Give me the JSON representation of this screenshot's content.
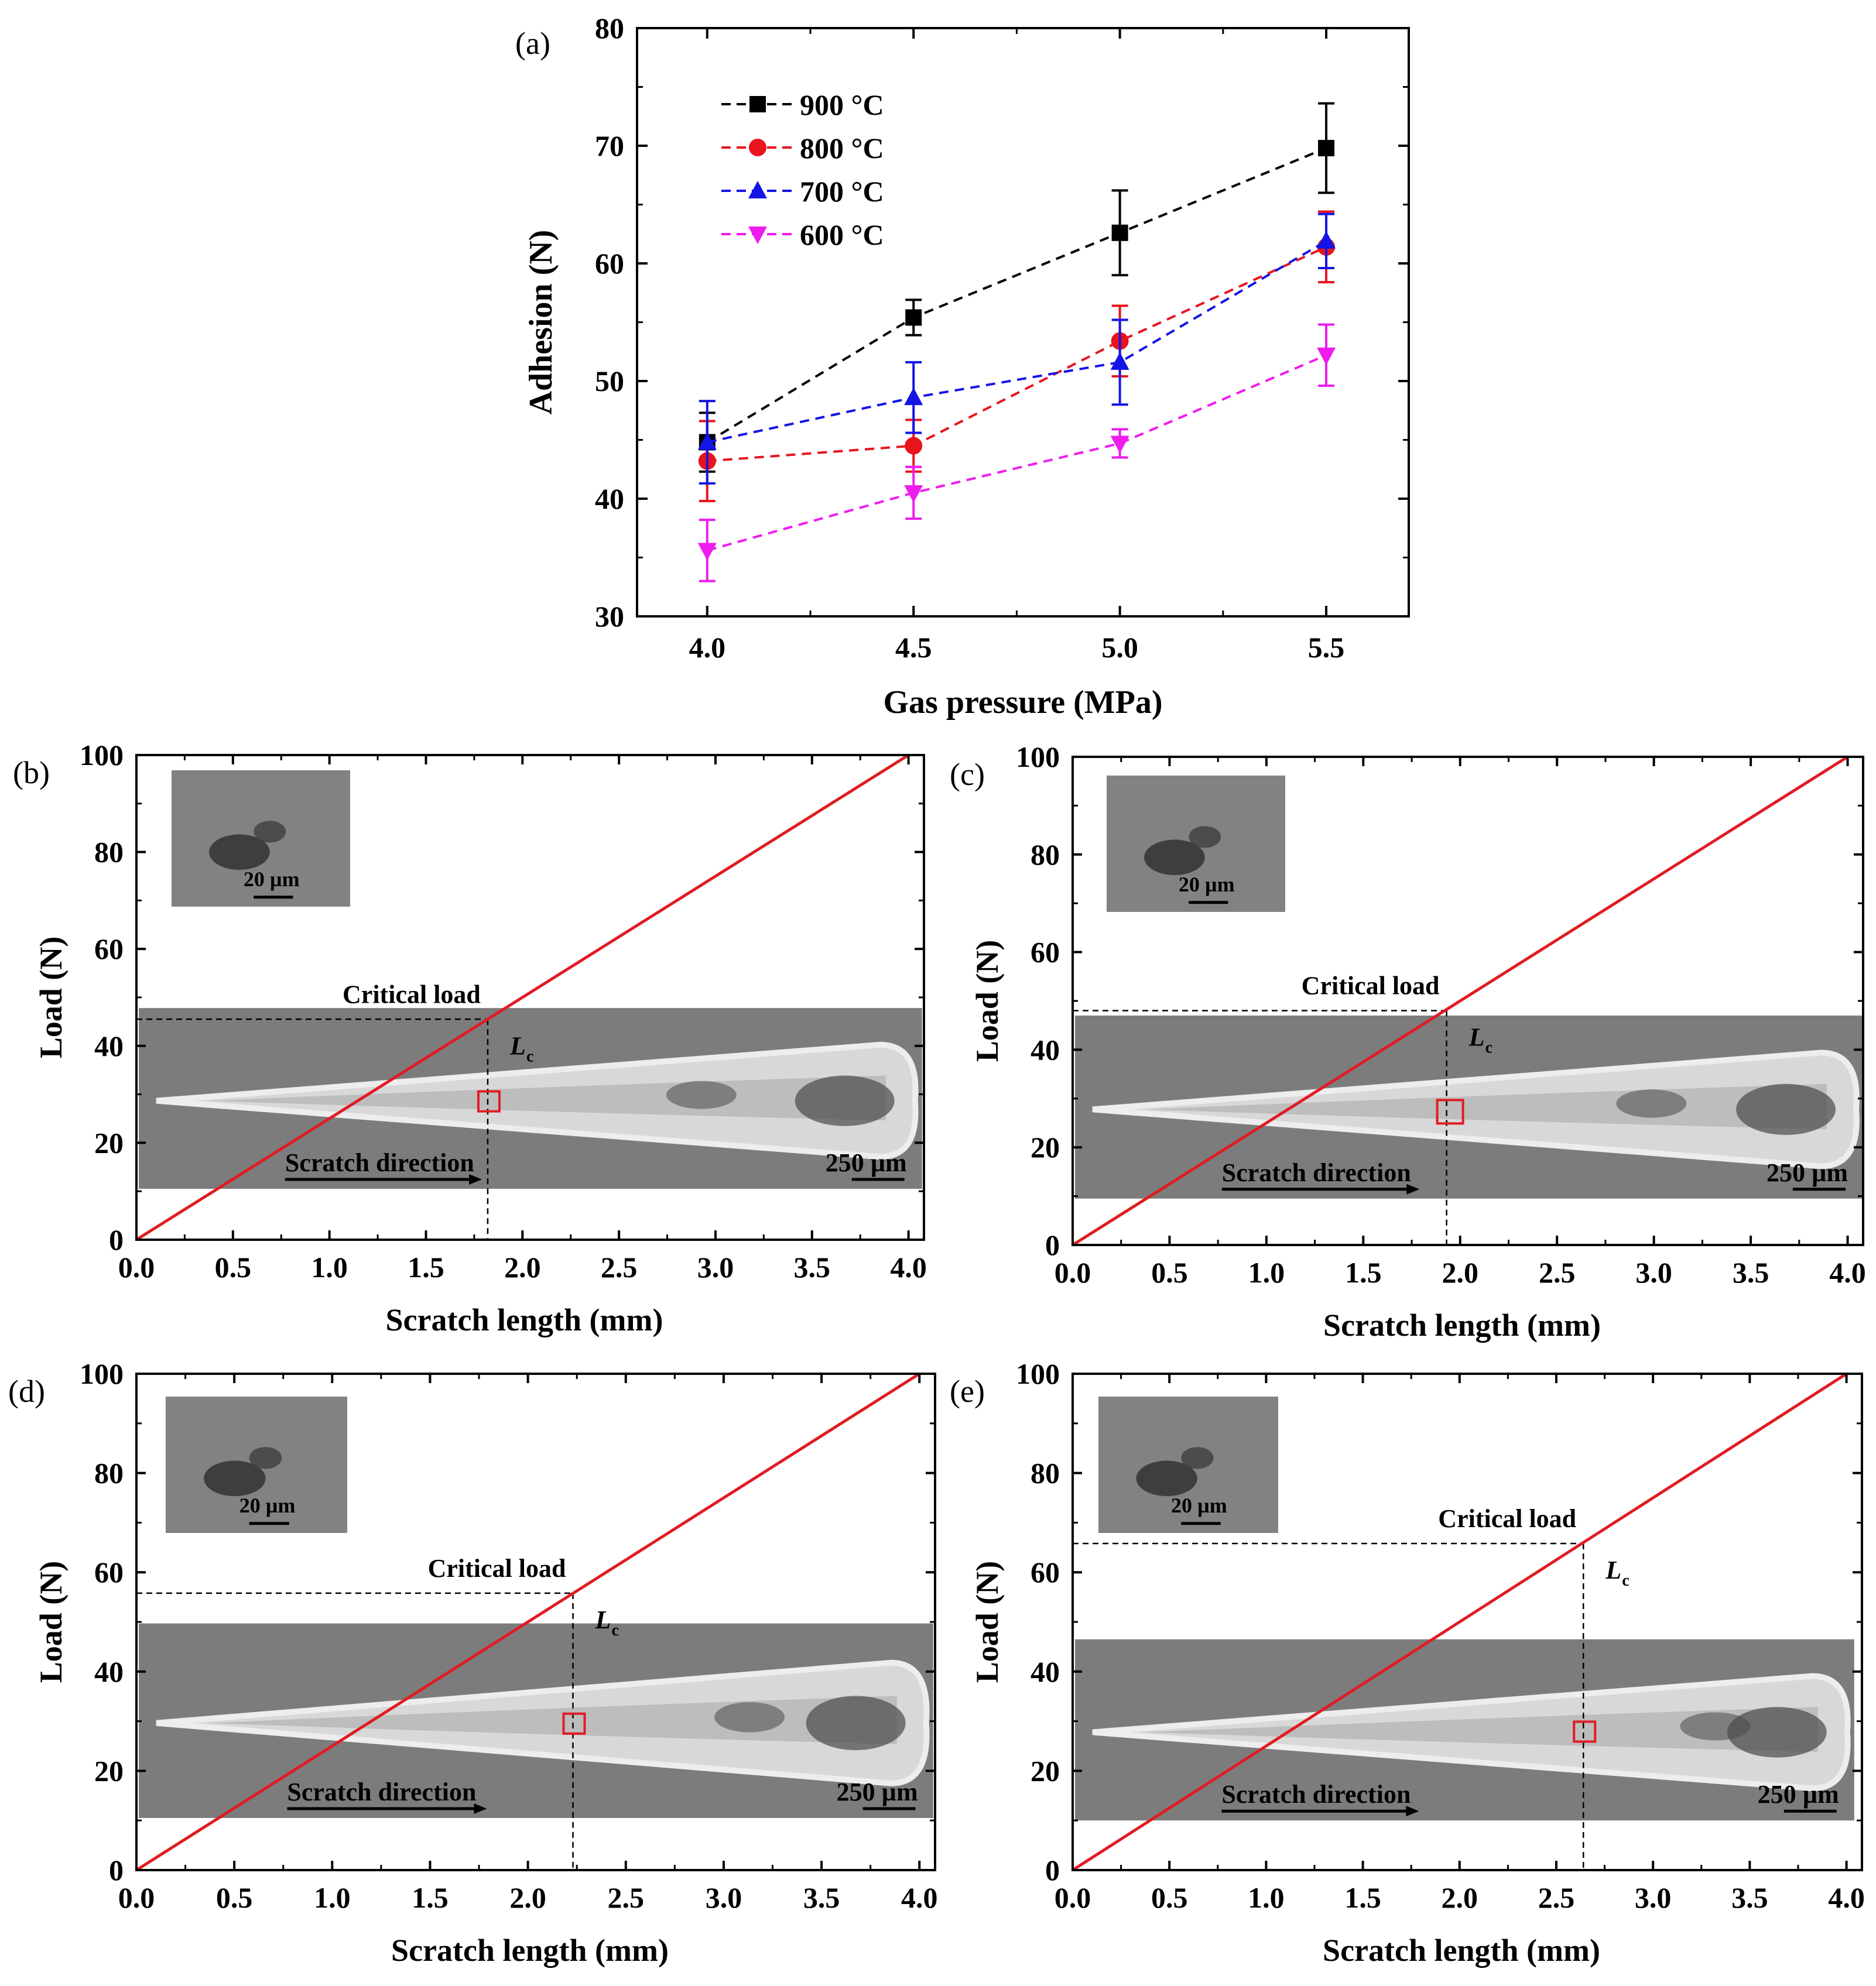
{
  "colors": {
    "series_900": "#000000",
    "series_800": "#e8141e",
    "series_700": "#1414e6",
    "series_600": "#ee1cee",
    "load_line": "#e01c24",
    "marker_box": "#e01c24",
    "sem_bg": "#7c7c7c",
    "scratch_track": "#d8d8d8",
    "scratch_edge": "#ededed",
    "wear_dark": "#4a4a4a",
    "inset_bg": "#828282",
    "inset_dark": "#3e3e3e"
  },
  "chart_data": [
    {
      "type": "line",
      "panel_label": "(a)",
      "xlabel": "Gas pressure (MPa)",
      "ylabel": "Adhesion (N)",
      "xlim": [
        3.83,
        5.7
      ],
      "ylim": [
        30,
        80
      ],
      "x": [
        4.0,
        4.5,
        5.0,
        5.5
      ],
      "x_tick_labels": [
        "4.0",
        "4.5",
        "5.0",
        "5.5"
      ],
      "y_ticks": [
        30,
        40,
        50,
        60,
        70,
        80
      ],
      "y_tick_labels": [
        "30",
        "40",
        "50",
        "60",
        "70",
        "80"
      ],
      "legend_placement": "top-left",
      "line_style": "dashed",
      "series": [
        {
          "name": "900 °C",
          "marker": "square",
          "values": [
            44.8,
            55.4,
            62.6,
            69.8
          ],
          "err": [
            2.5,
            1.5,
            3.6,
            3.8
          ]
        },
        {
          "name": "800 °C",
          "marker": "circle",
          "values": [
            43.2,
            44.5,
            53.4,
            61.4
          ],
          "err": [
            3.4,
            2.2,
            3.0,
            3.0
          ]
        },
        {
          "name": "700 °C",
          "marker": "triangle-up",
          "values": [
            44.8,
            48.6,
            51.6,
            61.9
          ],
          "err": [
            3.5,
            3.0,
            3.6,
            2.3
          ]
        },
        {
          "name": "600 °C",
          "marker": "triangle-down",
          "values": [
            35.6,
            40.5,
            44.7,
            52.2
          ],
          "err": [
            2.6,
            2.2,
            1.2,
            2.6
          ]
        }
      ]
    },
    {
      "type": "line",
      "panel_label": "(b)",
      "xlabel": "Scratch length (mm)",
      "ylabel": "Load (N)",
      "xlim": [
        0,
        4.08
      ],
      "ylim": [
        0,
        100
      ],
      "x_tick_labels": [
        "0.0",
        "0.5",
        "1.0",
        "1.5",
        "2.0",
        "2.5",
        "3.0",
        "3.5",
        "4.0"
      ],
      "y_tick_labels": [
        "0",
        "20",
        "40",
        "60",
        "80",
        "100"
      ],
      "load_line": {
        "x": [
          0,
          4.0
        ],
        "y": [
          0,
          100
        ]
      },
      "critical_length_mm": 1.82,
      "critical_load_N": 45.5,
      "critical_label": "Critical load",
      "lc_label": "L",
      "lc_subscript": "c",
      "scratch_label": "Scratch direction",
      "scale_bar_label": "250 µm",
      "inset_scale_label": "20 µm",
      "sem_band_y": [
        10.5,
        47.8
      ],
      "sem_band_x_end_mm": 4.07
    },
    {
      "type": "line",
      "panel_label": "(c)",
      "xlabel": "Scratch length (mm)",
      "ylabel": "Load (N)",
      "xlim": [
        0,
        4.08
      ],
      "ylim": [
        0,
        100
      ],
      "x_tick_labels": [
        "0.0",
        "0.5",
        "1.0",
        "1.5",
        "2.0",
        "2.5",
        "3.0",
        "3.5",
        "4.0"
      ],
      "y_tick_labels": [
        "0",
        "20",
        "40",
        "60",
        "80",
        "100"
      ],
      "load_line": {
        "x": [
          0,
          4.0
        ],
        "y": [
          0,
          100
        ]
      },
      "critical_length_mm": 1.93,
      "critical_load_N": 48.0,
      "critical_label": "Critical load",
      "lc_label": "L",
      "lc_subscript": "c",
      "scratch_label": "Scratch direction",
      "scale_bar_label": "250 µm",
      "inset_scale_label": "20 µm",
      "sem_band_y": [
        9.5,
        47.0
      ],
      "sem_band_x_end_mm": 4.08
    },
    {
      "type": "line",
      "panel_label": "(d)",
      "xlabel": "Scratch length (mm)",
      "ylabel": "Load (N)",
      "xlim": [
        0,
        4.08
      ],
      "ylim": [
        0,
        100
      ],
      "x_tick_labels": [
        "0.0",
        "0.5",
        "1.0",
        "1.5",
        "2.0",
        "2.5",
        "3.0",
        "3.5",
        "4.0"
      ],
      "y_tick_labels": [
        "0",
        "20",
        "40",
        "60",
        "80",
        "100"
      ],
      "load_line": {
        "x": [
          0,
          4.0
        ],
        "y": [
          0,
          100
        ]
      },
      "critical_length_mm": 2.23,
      "critical_load_N": 55.8,
      "critical_label": "Critical load",
      "lc_label": "L",
      "lc_subscript": "c",
      "scratch_label": "Scratch direction",
      "scale_bar_label": "250 µm",
      "inset_scale_label": "20 µm",
      "sem_band_y": [
        10.5,
        49.7
      ],
      "sem_band_x_end_mm": 4.07
    },
    {
      "type": "line",
      "panel_label": "(e)",
      "xlabel": "Scratch length (mm)",
      "ylabel": "Load (N)",
      "xlim": [
        0,
        4.08
      ],
      "ylim": [
        0,
        100
      ],
      "x_tick_labels": [
        "0.0",
        "0.5",
        "1.0",
        "1.5",
        "2.0",
        "2.5",
        "3.0",
        "3.5",
        "4.0"
      ],
      "y_tick_labels": [
        "0",
        "20",
        "40",
        "60",
        "80",
        "100"
      ],
      "load_line": {
        "x": [
          0,
          4.0
        ],
        "y": [
          0,
          100
        ]
      },
      "critical_length_mm": 2.64,
      "critical_load_N": 65.8,
      "critical_label": "Critical load",
      "lc_label": "L",
      "lc_subscript": "c",
      "scratch_label": "Scratch direction",
      "scale_bar_label": "250 µm",
      "inset_scale_label": "20 µm",
      "sem_band_y": [
        10.0,
        46.5
      ],
      "sem_band_x_end_mm": 4.04
    }
  ]
}
